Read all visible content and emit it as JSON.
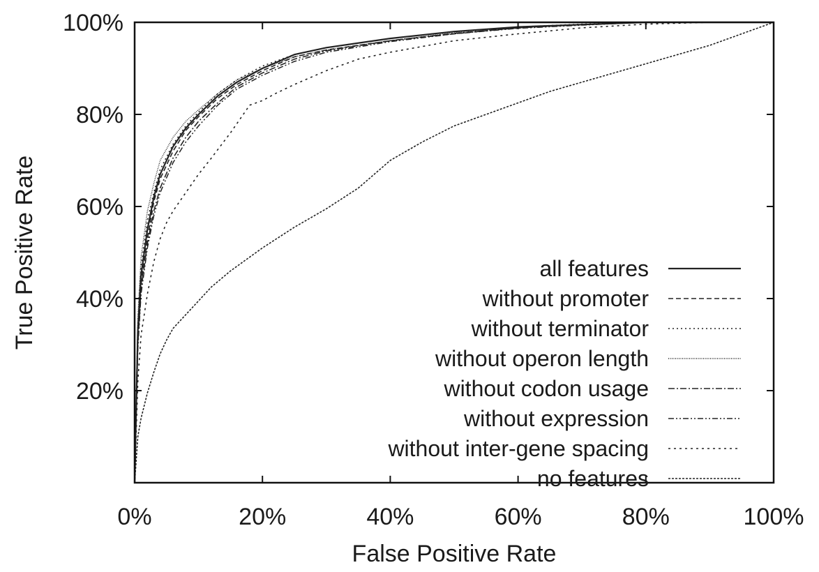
{
  "chart_data": {
    "type": "line",
    "xlabel": "False Positive Rate",
    "ylabel": "True Positive Rate",
    "xlim": [
      0,
      100
    ],
    "ylim": [
      0,
      100
    ],
    "x_ticks": [
      0,
      20,
      40,
      60,
      80,
      100
    ],
    "y_ticks": [
      20,
      40,
      60,
      80,
      100
    ],
    "x_tick_labels": [
      "0%",
      "20%",
      "40%",
      "60%",
      "80%",
      "100%"
    ],
    "y_tick_labels": [
      "20%",
      "40%",
      "60%",
      "80%",
      "100%"
    ],
    "legend_position": "bottom-right",
    "grid": false,
    "series": [
      {
        "name": "all features",
        "dash": "solid",
        "x": [
          0,
          0.5,
          1,
          2,
          3,
          4,
          6,
          8,
          10,
          13,
          16,
          20,
          25,
          30,
          40,
          50,
          60,
          70,
          80,
          90,
          100
        ],
        "y": [
          0,
          33,
          45,
          55,
          62,
          67,
          73,
          77,
          80,
          84,
          87,
          90,
          93,
          94.5,
          96.5,
          98,
          99,
          99.5,
          100,
          100,
          100
        ]
      },
      {
        "name": "without promoter",
        "dash": "dashed",
        "x": [
          0,
          0.5,
          1,
          2,
          3,
          4,
          6,
          8,
          10,
          13,
          16,
          20,
          25,
          30,
          40,
          50,
          60,
          70,
          80,
          90,
          100
        ],
        "y": [
          0,
          31,
          43,
          53,
          61,
          66,
          72,
          76.5,
          79.5,
          83.5,
          86.5,
          89.5,
          92.5,
          94,
          96,
          97.5,
          98.8,
          99.5,
          100,
          100,
          100
        ]
      },
      {
        "name": "without terminator",
        "dash": "dotted",
        "x": [
          0,
          0.5,
          1,
          2,
          3,
          4,
          6,
          8,
          10,
          13,
          16,
          20,
          25,
          30,
          40,
          50,
          60,
          70,
          80,
          90,
          100
        ],
        "y": [
          0,
          34,
          47,
          57,
          63,
          68,
          73.5,
          77.5,
          80.5,
          84.5,
          87.5,
          90.5,
          93,
          94.5,
          96.5,
          98,
          99,
          99.6,
          100,
          100,
          100
        ]
      },
      {
        "name": "without operon length",
        "dash": "fine",
        "x": [
          0,
          0.5,
          1,
          2,
          3,
          4,
          6,
          8,
          10,
          13,
          16,
          20,
          25,
          30,
          40,
          50,
          60,
          70,
          80,
          90,
          100
        ],
        "y": [
          0,
          36,
          49,
          59,
          65,
          70,
          75,
          78.5,
          81,
          84.5,
          87.5,
          90,
          92.5,
          94,
          96,
          97.8,
          98.8,
          99.5,
          100,
          100,
          100
        ]
      },
      {
        "name": "without codon usage",
        "dash": "dashdot",
        "x": [
          0,
          0.5,
          1,
          2,
          3,
          4,
          6,
          8,
          10,
          13,
          16,
          20,
          25,
          30,
          40,
          50,
          60,
          70,
          80,
          90,
          100
        ],
        "y": [
          0,
          30,
          42,
          52,
          59,
          64,
          70.5,
          75,
          78.5,
          82.5,
          86,
          89,
          92,
          93.8,
          96,
          97.6,
          98.8,
          99.5,
          100,
          100,
          100
        ]
      },
      {
        "name": "without expression",
        "dash": "dashdotdot",
        "x": [
          0,
          0.5,
          1,
          2,
          3,
          4,
          6,
          8,
          10,
          13,
          16,
          20,
          25,
          30,
          40,
          50,
          60,
          70,
          80,
          90,
          100
        ],
        "y": [
          0,
          29,
          41,
          51,
          58,
          63,
          69.5,
          74,
          77.5,
          82,
          85.5,
          88.5,
          91.5,
          93.5,
          95.8,
          97.5,
          98.7,
          99.4,
          100,
          100,
          100
        ]
      },
      {
        "name": "without inter-gene spacing",
        "dash": "sparse",
        "x": [
          0,
          0.5,
          1,
          2,
          3,
          4,
          5,
          6,
          7,
          8,
          10,
          12,
          15,
          18,
          20,
          22,
          25,
          30,
          35,
          40,
          50,
          60,
          70,
          80,
          90,
          100
        ],
        "y": [
          0,
          22,
          32,
          41,
          48,
          53,
          56.5,
          59,
          61,
          63,
          67,
          70.5,
          76,
          82,
          83,
          84.5,
          86.5,
          89.5,
          92,
          93.5,
          96,
          97.5,
          98.8,
          99.6,
          100,
          100
        ]
      },
      {
        "name": "no features",
        "dash": "dense",
        "x": [
          0,
          0.5,
          1,
          2,
          3,
          4,
          5,
          6,
          7,
          8,
          10,
          12,
          15,
          20,
          25,
          30,
          35,
          40,
          45,
          50,
          55,
          60,
          65,
          70,
          75,
          80,
          85,
          90,
          95,
          100
        ],
        "y": [
          0,
          10,
          14,
          19.5,
          24,
          28,
          31,
          33.5,
          35,
          36.5,
          39.5,
          42.5,
          46,
          51,
          55.5,
          59.5,
          64,
          70,
          74,
          77.5,
          80,
          82.5,
          85,
          87,
          89,
          91,
          93,
          95,
          97.5,
          100
        ]
      }
    ]
  }
}
